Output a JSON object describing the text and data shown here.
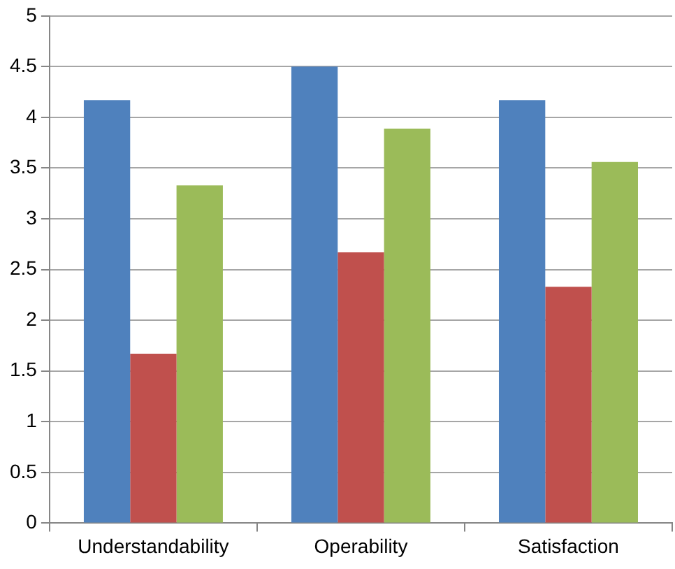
{
  "chart_data": {
    "type": "bar",
    "categories": [
      "Understandability",
      "Operability",
      "Satisfaction"
    ],
    "series": [
      {
        "color": "#4f81bd",
        "values": [
          4.17,
          4.5,
          4.17
        ]
      },
      {
        "color": "#c0504d",
        "values": [
          1.67,
          2.67,
          2.33
        ]
      },
      {
        "color": "#9bbb59",
        "values": [
          3.33,
          3.89,
          3.56
        ]
      }
    ],
    "ylim": [
      0,
      5
    ],
    "yticks": [
      0,
      0.5,
      1,
      1.5,
      2,
      2.5,
      3,
      3.5,
      4,
      4.5,
      5
    ],
    "grid": "y",
    "legend": false
  }
}
